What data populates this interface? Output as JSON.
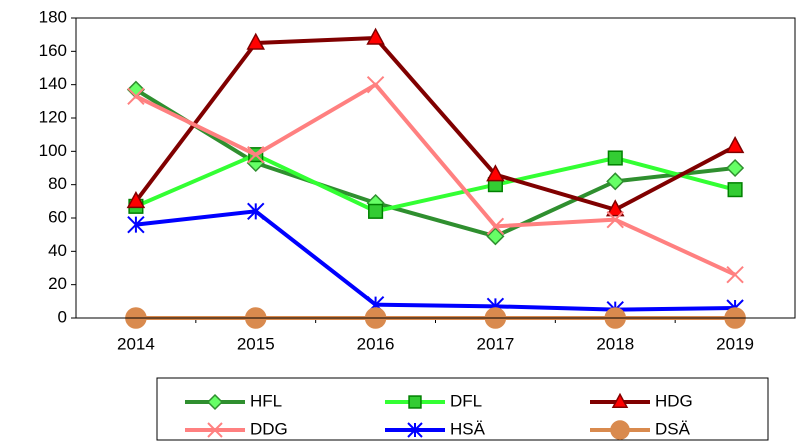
{
  "chart_data": {
    "type": "line",
    "categories": [
      "2014",
      "2015",
      "2016",
      "2017",
      "2018",
      "2019"
    ],
    "ylim": [
      0,
      180
    ],
    "yticks": [
      0,
      20,
      40,
      60,
      80,
      100,
      120,
      140,
      160,
      180
    ],
    "grid": false,
    "legend": "bottom",
    "series": [
      {
        "name": "HFL",
        "color": "#2f8f2f",
        "marker": "diamond",
        "marker_color": "#66ff66",
        "values": [
          137,
          93,
          69,
          49,
          82,
          90
        ]
      },
      {
        "name": "DFL",
        "color": "#33ff33",
        "marker": "square",
        "marker_color": "#33cc33",
        "values": [
          67,
          98,
          64,
          80,
          96,
          77
        ]
      },
      {
        "name": "HDG",
        "color": "#800000",
        "marker": "triangle",
        "marker_color": "#ff0000",
        "values": [
          70,
          165,
          168,
          86,
          65,
          103
        ]
      },
      {
        "name": "DDG",
        "color": "#ff8080",
        "marker": "x",
        "marker_color": "#ff8080",
        "values": [
          133,
          98,
          140,
          55,
          59,
          26
        ]
      },
      {
        "name": "HSÄ",
        "color": "#0000ff",
        "marker": "star",
        "marker_color": "#0000ff",
        "values": [
          56,
          64,
          8,
          7,
          5,
          6
        ]
      },
      {
        "name": "DSÄ",
        "color": "#d98a4e",
        "marker": "circle",
        "marker_color": "#d98a4e",
        "values": [
          0,
          0,
          0,
          0,
          0,
          0
        ]
      }
    ]
  }
}
